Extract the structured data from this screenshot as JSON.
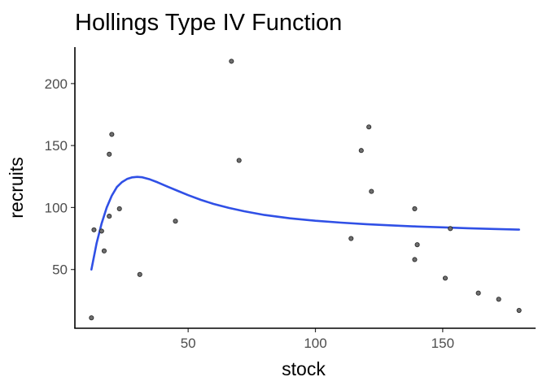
{
  "chart_data": {
    "type": "scatter",
    "title": "Hollings Type IV Function",
    "xlabel": "stock",
    "ylabel": "recruits",
    "xlim": [
      5.5,
      186.5
    ],
    "ylim": [
      2.6,
      229.4
    ],
    "xticks": [
      50,
      100,
      150
    ],
    "yticks": [
      50,
      100,
      150,
      200
    ],
    "grid": false,
    "legend": "none",
    "point_color": "#6e6e6e",
    "curve_color": "#3050e6",
    "points": [
      {
        "x": 12,
        "y": 11
      },
      {
        "x": 13,
        "y": 82
      },
      {
        "x": 16,
        "y": 81
      },
      {
        "x": 17,
        "y": 65
      },
      {
        "x": 19,
        "y": 93
      },
      {
        "x": 19,
        "y": 143
      },
      {
        "x": 20,
        "y": 159
      },
      {
        "x": 23,
        "y": 99
      },
      {
        "x": 31,
        "y": 46
      },
      {
        "x": 45,
        "y": 89
      },
      {
        "x": 67,
        "y": 218
      },
      {
        "x": 70,
        "y": 138
      },
      {
        "x": 114,
        "y": 75
      },
      {
        "x": 118,
        "y": 146
      },
      {
        "x": 121,
        "y": 165
      },
      {
        "x": 122,
        "y": 113
      },
      {
        "x": 139,
        "y": 99
      },
      {
        "x": 139,
        "y": 58
      },
      {
        "x": 140,
        "y": 70
      },
      {
        "x": 151,
        "y": 43
      },
      {
        "x": 153,
        "y": 83
      },
      {
        "x": 164,
        "y": 31
      },
      {
        "x": 172,
        "y": 26
      },
      {
        "x": 180,
        "y": 17
      }
    ],
    "curve": {
      "x": [
        12,
        14,
        16,
        18,
        20,
        22,
        24,
        26,
        28,
        30,
        32,
        35,
        38,
        42,
        46,
        50,
        55,
        60,
        66,
        72,
        80,
        90,
        100,
        110,
        120,
        130,
        140,
        150,
        160,
        170,
        180
      ],
      "y": [
        50.0,
        71.0,
        87.0,
        100.0,
        109.5,
        116.5,
        120.5,
        123.0,
        124.3,
        124.7,
        124.4,
        122.7,
        120.3,
        116.8,
        113.4,
        110.0,
        106.2,
        102.9,
        99.7,
        97.0,
        94.0,
        91.3,
        89.3,
        87.8,
        86.6,
        85.6,
        84.7,
        84.0,
        83.3,
        82.7,
        82.2
      ]
    }
  }
}
